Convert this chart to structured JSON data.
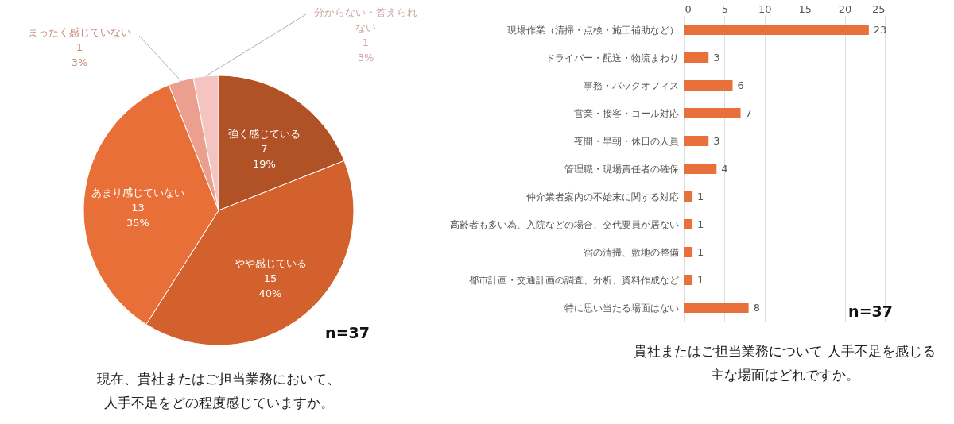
{
  "chart_data": [
    {
      "type": "pie",
      "title": "現在、貴社またはご担当業務において、人手不足をどの程度感じていますか。",
      "categories": [
        "強く感じている",
        "やや感じている",
        "あまり感じていない",
        "まったく感じていない",
        "分からない・答えられない"
      ],
      "values": [
        19,
        40,
        35,
        3,
        3
      ],
      "value_labels": [
        "7\n19%",
        "15\n40%",
        "13\n35%",
        "1\n3%",
        "1\n3%"
      ],
      "colors": [
        "#b05126",
        "#d3612d",
        "#e87038",
        "#eb9f8e",
        "#f3c4c0"
      ],
      "annotations": [
        "n=37"
      ]
    },
    {
      "type": "bar",
      "orientation": "horizontal",
      "title": "貴社またはご担当業務について  人手不足を感じる主な場面はどれですか。",
      "categories": [
        "現場作業（清掃・点検・施工補助など）",
        "ドライバー・配送・物流まわり",
        "事務・バックオフィス",
        "営業・接客・コール対応",
        "夜間・早朝・休日の人員",
        "管理職・現場責任者の確保",
        "仲介業者案内の不始末に関する対応",
        "高齢者も多い為、入院などの場合、交代要員が居ない",
        "宿の清掃、敷地の整備",
        "都市計画・交通計画の調査、分析、資料作成など",
        "特に思い当たる場面はない"
      ],
      "values": [
        23,
        3,
        6,
        7,
        3,
        4,
        1,
        1,
        1,
        1,
        8
      ],
      "color": "#e8703a",
      "xlim": [
        0,
        25
      ],
      "xticks": [
        0,
        5,
        10,
        15,
        20,
        25
      ],
      "grid": "x",
      "data_labels": true,
      "annotations": [
        "n=37"
      ]
    }
  ]
}
